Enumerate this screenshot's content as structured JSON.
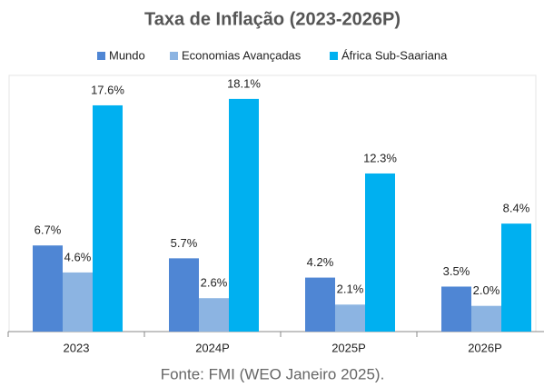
{
  "chart_data": {
    "type": "bar",
    "title": "Taxa de Inflação (2023-2026P)",
    "categories": [
      "2023",
      "2024P",
      "2025P",
      "2026P"
    ],
    "series": [
      {
        "name": "Mundo",
        "color": "#4f86d4",
        "values": [
          6.7,
          5.7,
          4.2,
          3.5
        ],
        "value_labels": [
          "6.7%",
          "5.7%",
          "4.2%",
          "3.5%"
        ]
      },
      {
        "name": "Economias Avançadas",
        "color": "#8cb4e2",
        "values": [
          4.6,
          2.6,
          2.1,
          2.0
        ],
        "value_labels": [
          "4.6%",
          "2.6%",
          "2.1%",
          "2.0%"
        ]
      },
      {
        "name": "África Sub-Saariana",
        "color": "#00b0f0",
        "values": [
          17.6,
          18.1,
          12.3,
          8.4
        ],
        "value_labels": [
          "17.6%",
          "18.1%",
          "12.3%",
          "8.4%"
        ]
      }
    ],
    "ylim": [
      0,
      20
    ],
    "legend": "top",
    "source": "Fonte: FMI (WEO Janeiro 2025)."
  }
}
